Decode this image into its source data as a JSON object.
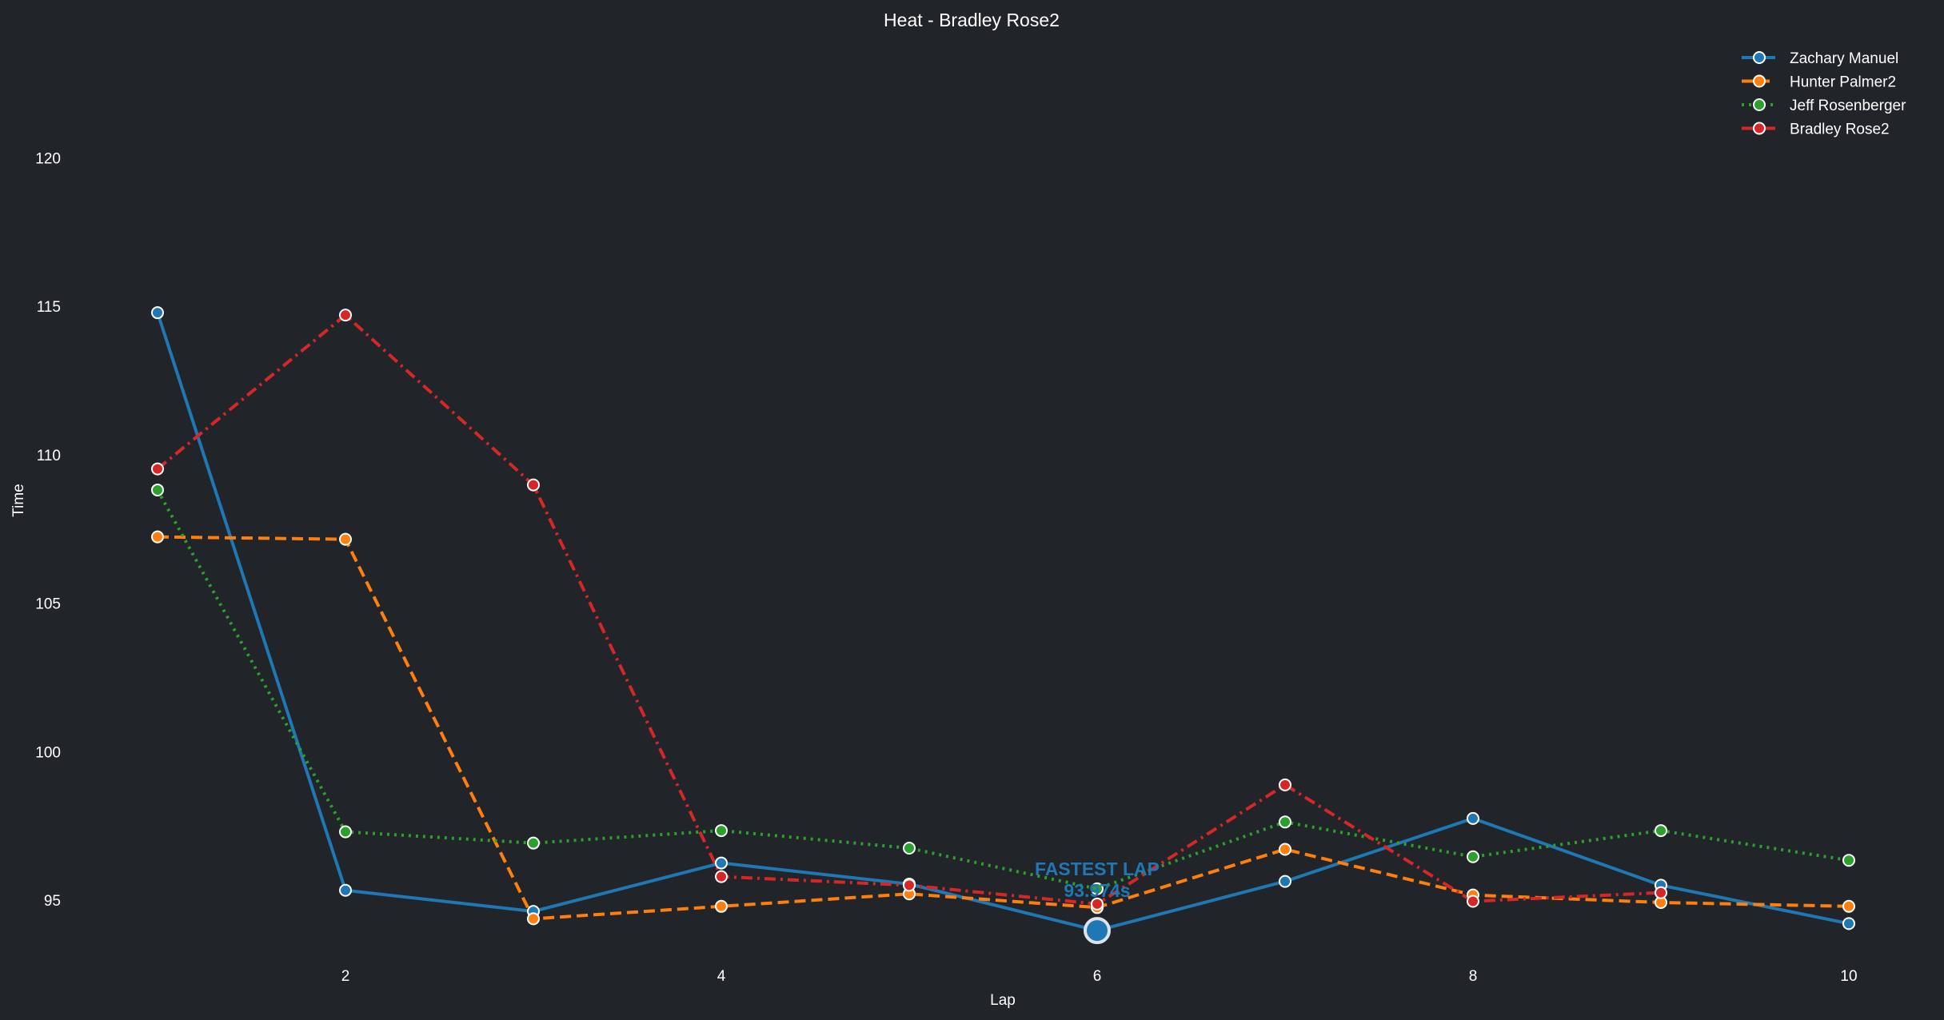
{
  "chart_data": {
    "type": "line",
    "title": "Heat - Bradley Rose2",
    "xlabel": "Lap",
    "ylabel": "Time",
    "xlim": [
      0.7,
      10.3
    ],
    "ylim": [
      91.9,
      125.3
    ],
    "xticks": [
      2,
      4,
      6,
      8,
      10
    ],
    "yticks": [
      95,
      100,
      105,
      110,
      115,
      120
    ],
    "grid": false,
    "legend_position": "top-right",
    "series": [
      {
        "name": "Zachary Manuel",
        "color": "#1f77b4",
        "style": "solid",
        "x": [
          1,
          2,
          3,
          4,
          5,
          6,
          7,
          8,
          9,
          10
        ],
        "values": [
          114.78,
          95.33,
          94.62,
          96.25,
          95.54,
          93.974,
          95.63,
          97.75,
          95.5,
          94.21
        ]
      },
      {
        "name": "Hunter Palmer2",
        "color": "#ff7f0e",
        "style": "dashed",
        "x": [
          1,
          2,
          3,
          4,
          5,
          6,
          7,
          8,
          9,
          10
        ],
        "values": [
          107.23,
          107.15,
          94.37,
          94.79,
          95.21,
          94.75,
          96.71,
          95.17,
          94.92,
          94.79
        ]
      },
      {
        "name": "Jeff Rosenberger",
        "color": "#2ca02c",
        "style": "dotted",
        "x": [
          1,
          2,
          3,
          4,
          5,
          6,
          7,
          8,
          9,
          10
        ],
        "values": [
          108.81,
          97.3,
          96.92,
          97.34,
          96.75,
          95.38,
          97.63,
          96.46,
          97.34,
          96.34
        ]
      },
      {
        "name": "Bradley Rose2",
        "color": "#d62728",
        "style": "dashdot",
        "x": [
          1,
          2,
          3,
          4,
          5,
          6,
          7,
          8,
          9
        ],
        "values": [
          109.52,
          114.7,
          108.98,
          95.79,
          95.5,
          94.87,
          98.88,
          94.96,
          95.25
        ]
      }
    ],
    "annotation": {
      "line1": "FASTEST LAP",
      "line2": "93.974s",
      "x": 6,
      "y": 93.974,
      "color": "#1f77b4"
    }
  }
}
